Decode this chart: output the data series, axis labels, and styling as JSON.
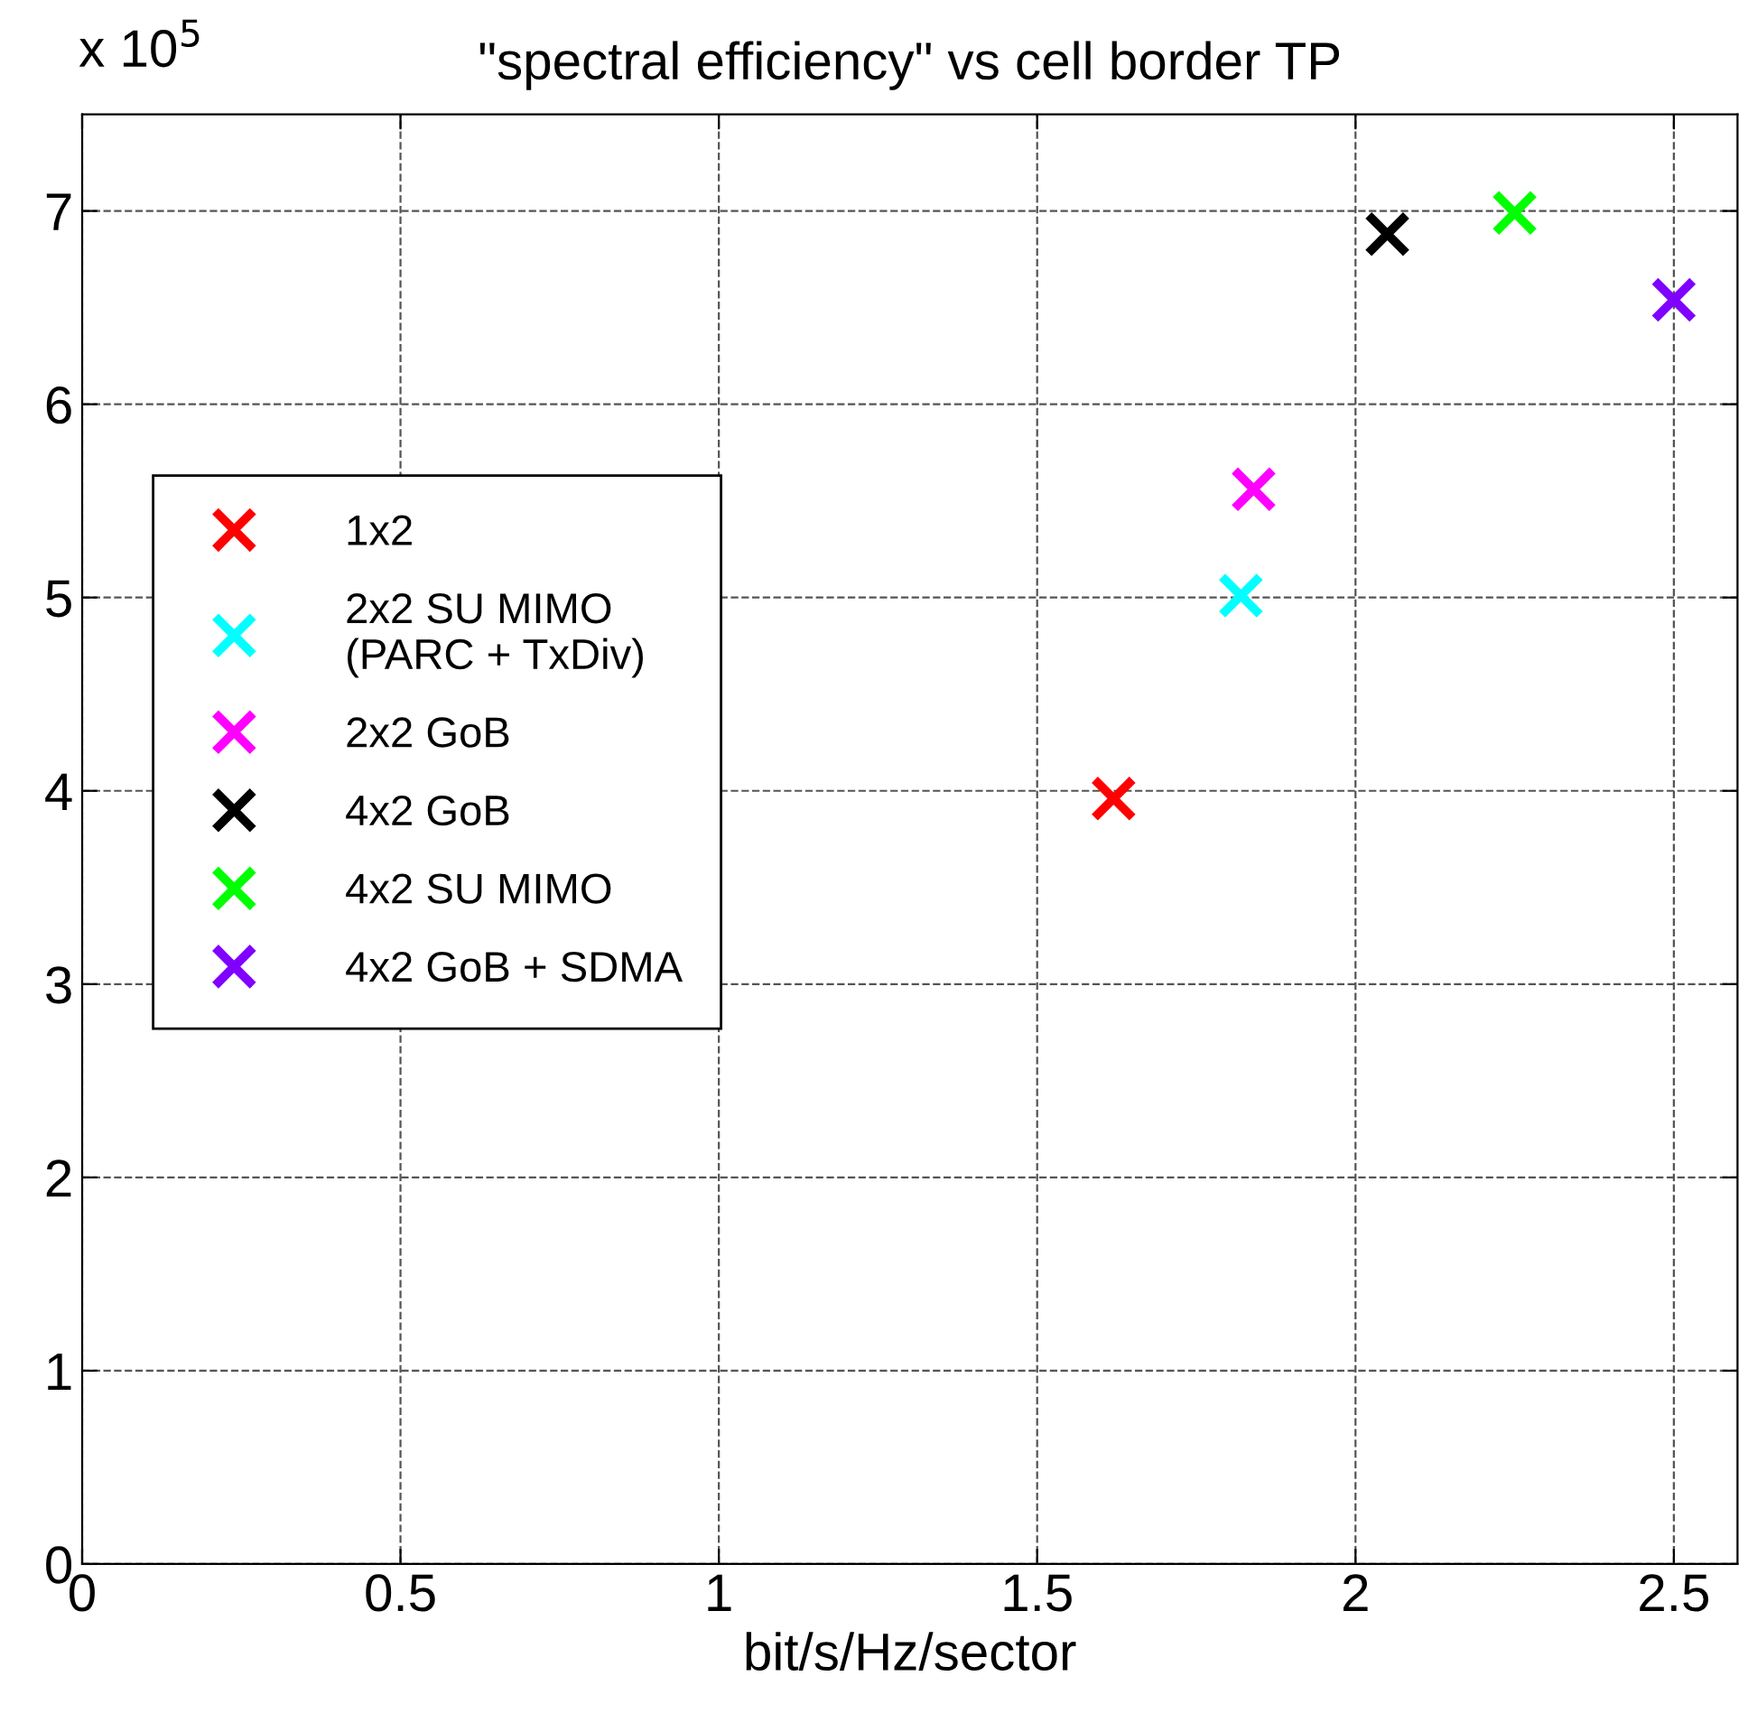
{
  "chart_data": {
    "type": "scatter",
    "title": "\"spectral efficiency\" vs cell border TP",
    "xlabel": "bit/s/Hz/sector",
    "annotations": [
      "x 10$^{5}$"
    ],
    "series": [
      {
        "name": "1x2",
        "color": "#ff0000",
        "x": [
          1.62
        ],
        "values": [
          3.96
        ]
      },
      {
        "name": "2x2 SU MIMO\n(PARC + TxDiv)",
        "color": "#00ffff",
        "x": [
          1.82
        ],
        "values": [
          5.01
        ]
      },
      {
        "name": "2x2 GoB",
        "color": "#ff00ff",
        "x": [
          1.84
        ],
        "values": [
          5.56
        ]
      },
      {
        "name": "4x2 GoB",
        "color": "#000000",
        "x": [
          2.05
        ],
        "values": [
          6.88
        ]
      },
      {
        "name": "4x2 SU MIMO",
        "color": "#00ff00",
        "x": [
          2.25
        ],
        "values": [
          6.99
        ]
      },
      {
        "name": "4x2 GoB + SDMA",
        "color": "#8000ff",
        "x": [
          2.5
        ],
        "values": [
          6.54
        ]
      }
    ],
    "xlim": [
      0,
      2.6
    ],
    "xticks": [
      0,
      0.5,
      1,
      1.5,
      2,
      2.5
    ],
    "ylim": [
      0,
      7.5
    ],
    "yticks": [
      0,
      1,
      2,
      3,
      4,
      5,
      6,
      7
    ],
    "grid": true,
    "legend": "center left",
    "marker": "cross",
    "line_style": "dashed"
  }
}
